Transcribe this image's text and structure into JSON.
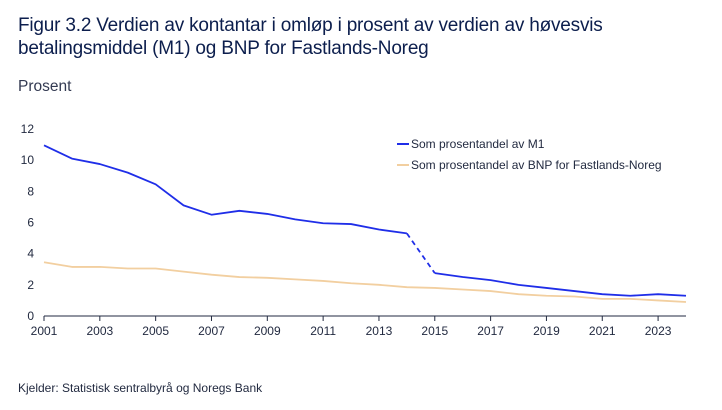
{
  "title": "Figur 3.2 Verdien av kontantar i omløp i prosent av verdien av høvesvis betalingsmiddel (M1) og BNP for Fastlands-Noreg",
  "subtitle": "Prosent",
  "source": "Kjelder: Statistisk sentralbyrå og Noregs Bank",
  "chart_data": {
    "type": "line",
    "title": "Figur 3.2 Verdien av kontantar i omløp i prosent av verdien av høvesvis betalingsmiddel (M1) og BNP for Fastlands-Noreg",
    "ylabel": "Prosent",
    "xlim": [
      2001,
      2024
    ],
    "ylim": [
      0,
      12
    ],
    "x_ticks": [
      "2001",
      "2003",
      "2005",
      "2007",
      "2009",
      "2011",
      "2013",
      "2015",
      "2017",
      "2019",
      "2021",
      "2023"
    ],
    "y_ticks": [
      "0",
      "2",
      "4",
      "6",
      "8",
      "10",
      "12"
    ],
    "grid": false,
    "legend_position": "top-right",
    "x": [
      2001,
      2002,
      2003,
      2004,
      2005,
      2006,
      2007,
      2008,
      2009,
      2010,
      2011,
      2012,
      2013,
      2014,
      2015,
      2016,
      2017,
      2018,
      2019,
      2020,
      2021,
      2022,
      2023,
      2024
    ],
    "series": [
      {
        "name": "Som prosentandel av M1",
        "color": "#1f2ee8",
        "values": [
          10.95,
          10.1,
          9.75,
          9.2,
          8.45,
          7.1,
          6.5,
          6.75,
          6.55,
          6.2,
          5.95,
          5.9,
          5.55,
          5.3,
          2.75,
          2.5,
          2.3,
          2.0,
          1.8,
          1.6,
          1.4,
          1.3,
          1.4,
          1.3
        ],
        "dashed_segment": [
          2014,
          2015
        ]
      },
      {
        "name": "Som prosentandel av BNP for Fastlands-Noreg",
        "color": "#f2cfa0",
        "values": [
          3.45,
          3.15,
          3.15,
          3.05,
          3.05,
          2.85,
          2.65,
          2.5,
          2.45,
          2.35,
          2.25,
          2.1,
          2.0,
          1.85,
          1.8,
          1.7,
          1.6,
          1.4,
          1.3,
          1.25,
          1.1,
          1.1,
          1.0,
          0.9
        ]
      }
    ]
  }
}
